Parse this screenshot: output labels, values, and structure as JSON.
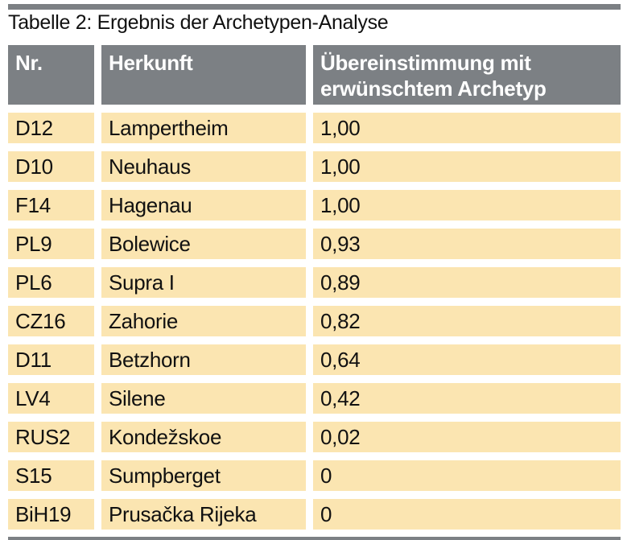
{
  "title": "Tabelle 2: Ergebnis der Archetypen-Analyse",
  "colors": {
    "header_bg": "#7c8084",
    "row_bg": "#fbe5b1",
    "rule": "#7c8084",
    "header_text": "#ffffff",
    "body_text": "#111111"
  },
  "table": {
    "columns": [
      "Nr.",
      "Herkunft",
      "Übereinstimmung mit erwünschtem Archetyp"
    ],
    "rows": [
      {
        "nr": "D12",
        "herkunft": "Lampertheim",
        "wert": "1,00"
      },
      {
        "nr": "D10",
        "herkunft": "Neuhaus",
        "wert": "1,00"
      },
      {
        "nr": "F14",
        "herkunft": "Hagenau",
        "wert": "1,00"
      },
      {
        "nr": "PL9",
        "herkunft": "Bolewice",
        "wert": "0,93"
      },
      {
        "nr": "PL6",
        "herkunft": "Supra I",
        "wert": "0,89"
      },
      {
        "nr": "CZ16",
        "herkunft": "Zahorie",
        "wert": "0,82"
      },
      {
        "nr": "D11",
        "herkunft": "Betzhorn",
        "wert": "0,64"
      },
      {
        "nr": "LV4",
        "herkunft": "Silene",
        "wert": "0,42"
      },
      {
        "nr": "RUS2",
        "herkunft": "Kondežskoe",
        "wert": "0,02"
      },
      {
        "nr": "S15",
        "herkunft": "Sumpberget",
        "wert": "0"
      },
      {
        "nr": "BiH19",
        "herkunft": "Prusačka Rijeka",
        "wert": "0"
      }
    ]
  }
}
